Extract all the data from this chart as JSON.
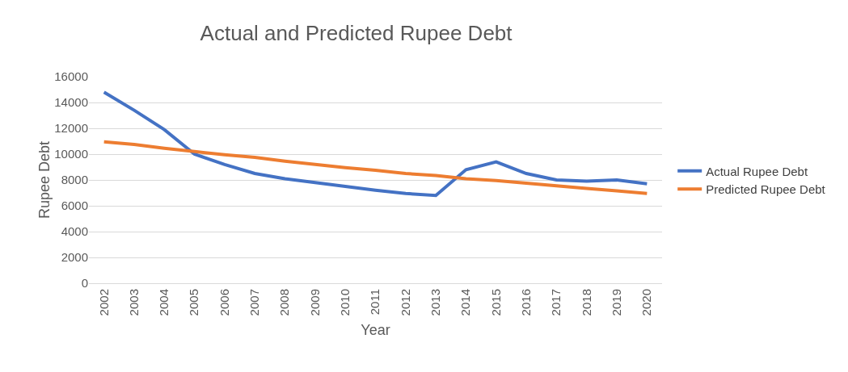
{
  "chart_data": {
    "type": "line",
    "title": "Actual and Predicted Rupee Debt",
    "xlabel": "Year",
    "ylabel": "Rupee Debt",
    "categories": [
      "2002",
      "2003",
      "2004",
      "2005",
      "2006",
      "2007",
      "2008",
      "2009",
      "2010",
      "2011",
      "2012",
      "2013",
      "2014",
      "2015",
      "2016",
      "2017",
      "2018",
      "2019",
      "2020"
    ],
    "series": [
      {
        "name": "Actual Rupee Debt",
        "color": "#4472c4",
        "values": [
          14800,
          13400,
          11900,
          10000,
          9200,
          8500,
          8100,
          7800,
          7500,
          7200,
          6950,
          6800,
          8800,
          9400,
          8500,
          8000,
          7900,
          8000,
          7700
        ]
      },
      {
        "name": "Predicted Rupee Debt",
        "color": "#ed7d31",
        "values": [
          10950,
          10750,
          10450,
          10200,
          9950,
          9750,
          9450,
          9200,
          8950,
          8750,
          8500,
          8350,
          8100,
          7950,
          7750,
          7550,
          7350,
          7150,
          6950
        ]
      }
    ],
    "ylim": [
      0,
      16000
    ],
    "yticks": [
      0,
      2000,
      4000,
      6000,
      8000,
      10000,
      12000,
      14000,
      16000
    ],
    "grid": "y",
    "legend": "right",
    "marker": "none",
    "line_style": "solid"
  }
}
